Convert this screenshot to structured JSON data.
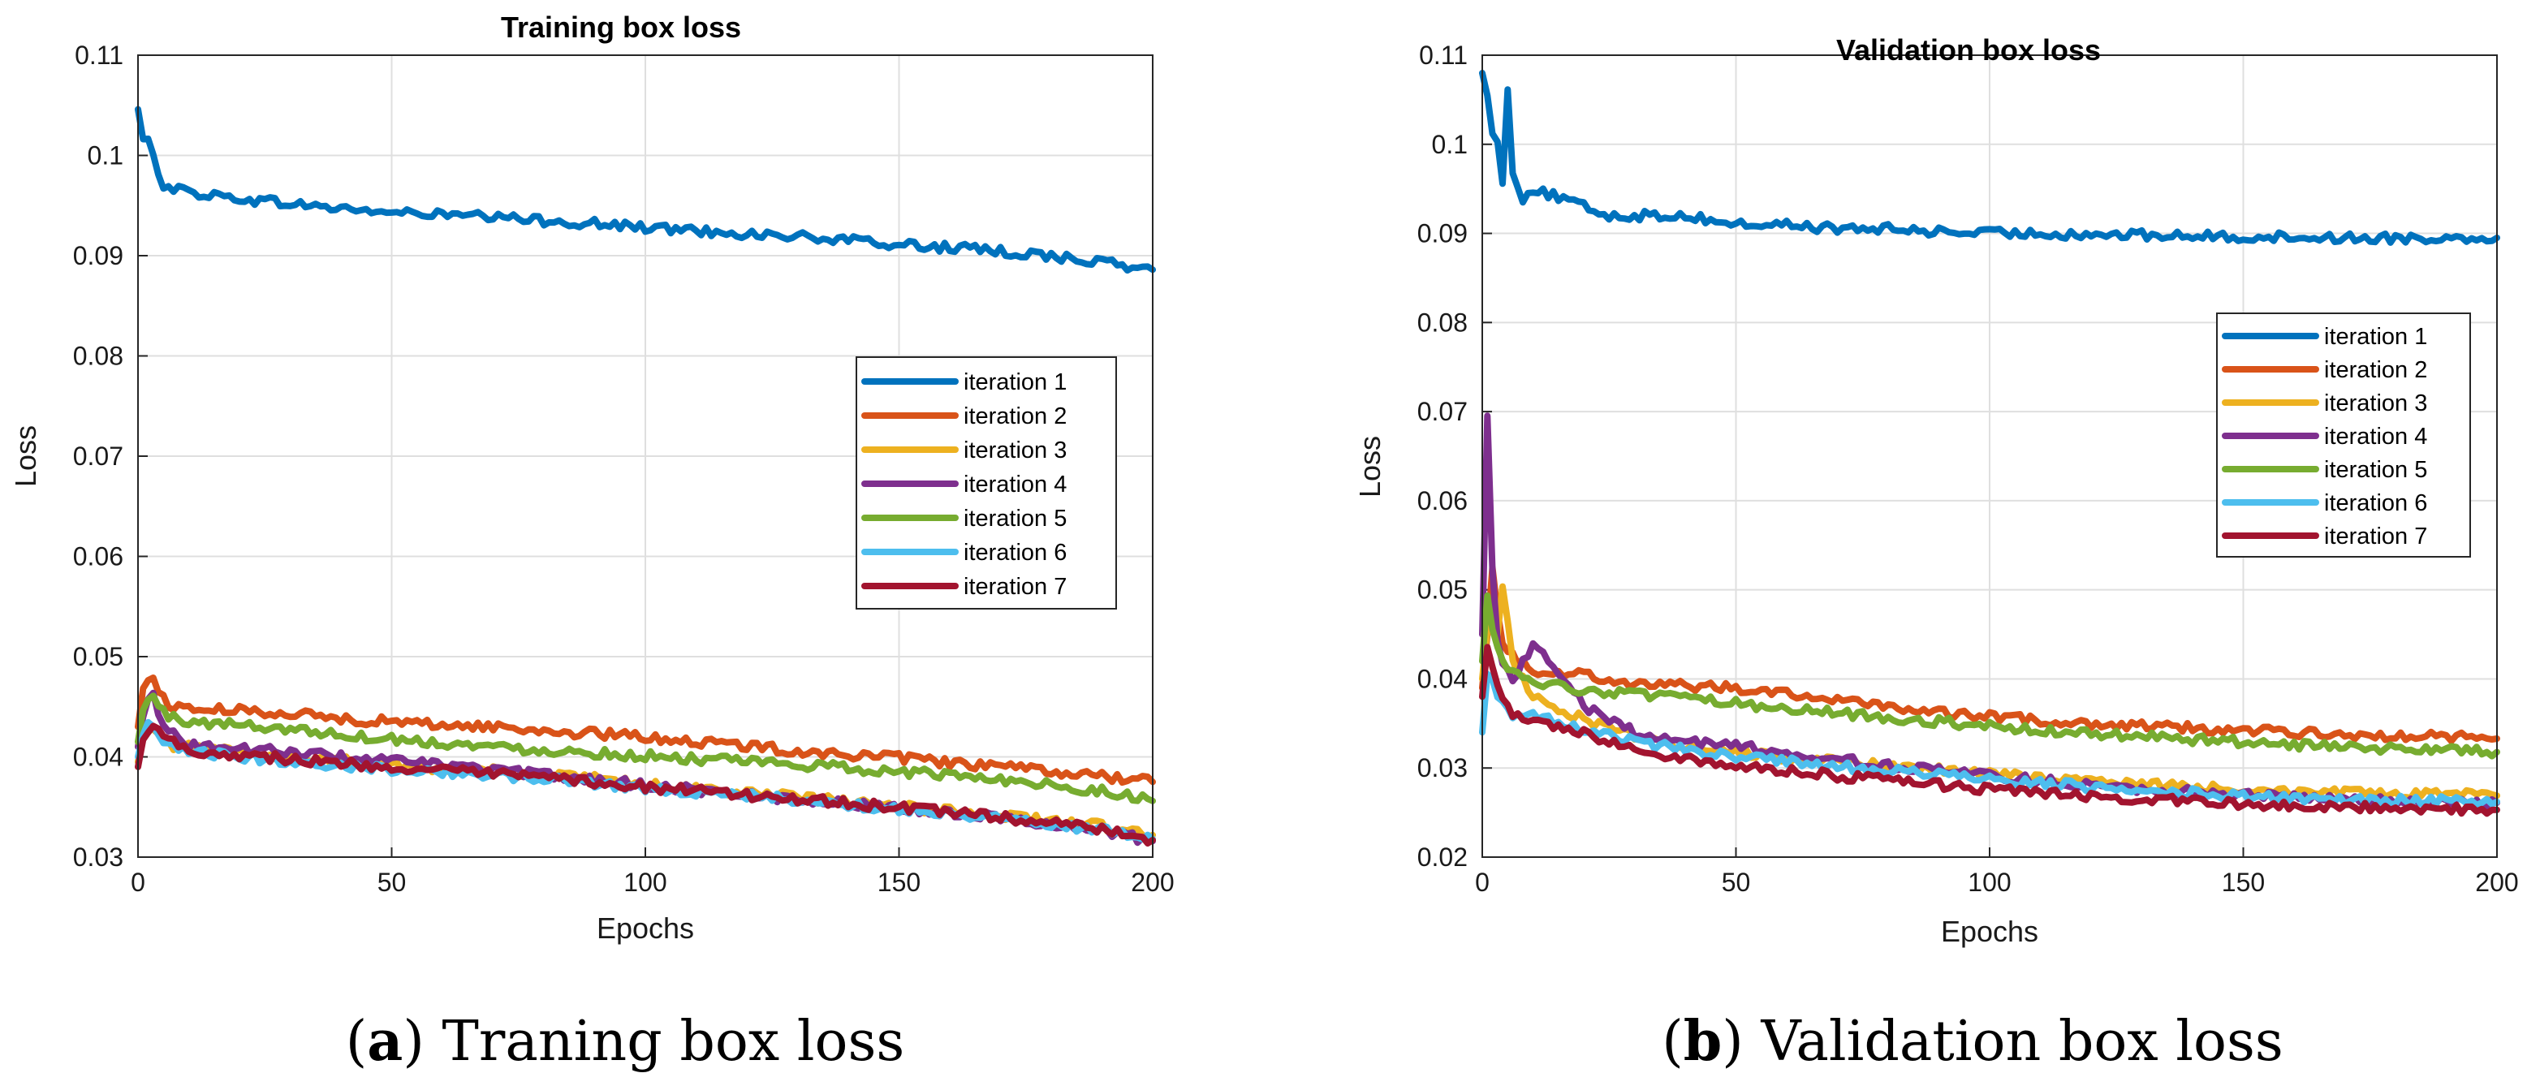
{
  "chart_data": [
    {
      "type": "line",
      "title": "Training box loss",
      "xlabel": "Epochs",
      "ylabel": "Loss",
      "xlim": [
        0,
        200
      ],
      "ylim": [
        0.03,
        0.11
      ],
      "xticks": [
        0,
        50,
        100,
        150,
        200
      ],
      "yticks": [
        0.03,
        0.04,
        0.05,
        0.06,
        0.07,
        0.08,
        0.09,
        0.1,
        0.11
      ],
      "grid": true,
      "legend_position": "center-right",
      "caption_letter": "a",
      "caption_text": "Traning box loss",
      "series": [
        {
          "name": "iteration 1",
          "color": "#0072BD",
          "x": [
            0,
            1,
            2,
            3,
            4,
            5,
            8,
            12,
            20,
            30,
            40,
            50,
            60,
            70,
            80,
            90,
            100,
            110,
            120,
            130,
            140,
            150,
            160,
            170,
            180,
            190,
            200
          ],
          "y": [
            0.1046,
            0.1015,
            0.1012,
            0.1005,
            0.0985,
            0.097,
            0.0966,
            0.0962,
            0.0957,
            0.0952,
            0.0947,
            0.0943,
            0.0941,
            0.0938,
            0.0935,
            0.0932,
            0.0928,
            0.0925,
            0.0922,
            0.0919,
            0.0915,
            0.0911,
            0.0908,
            0.0904,
            0.09,
            0.0893,
            0.0886
          ]
        },
        {
          "name": "iteration 2",
          "color": "#D95319",
          "x": [
            0,
            1,
            2,
            3,
            4,
            6,
            10,
            20,
            30,
            40,
            50,
            60,
            70,
            80,
            90,
            100,
            110,
            120,
            130,
            140,
            150,
            160,
            170,
            180,
            190,
            200
          ],
          "y": [
            0.043,
            0.0467,
            0.0478,
            0.048,
            0.0465,
            0.0452,
            0.0448,
            0.0446,
            0.0444,
            0.0438,
            0.0435,
            0.0432,
            0.043,
            0.0426,
            0.0423,
            0.042,
            0.0415,
            0.0411,
            0.0406,
            0.0402,
            0.0399,
            0.0394,
            0.039,
            0.0385,
            0.0381,
            0.0375
          ]
        },
        {
          "name": "iteration 3",
          "color": "#EDB120",
          "x": [
            0,
            1,
            2,
            3,
            4,
            6,
            10,
            20,
            30,
            40,
            50,
            60,
            70,
            80,
            90,
            100,
            110,
            120,
            130,
            140,
            150,
            160,
            170,
            180,
            190,
            200
          ],
          "y": [
            0.0395,
            0.0418,
            0.043,
            0.0425,
            0.042,
            0.0412,
            0.041,
            0.0405,
            0.0398,
            0.0396,
            0.0392,
            0.0389,
            0.0386,
            0.0382,
            0.0378,
            0.0372,
            0.0368,
            0.0364,
            0.036,
            0.0355,
            0.035,
            0.0346,
            0.0342,
            0.0336,
            0.0331,
            0.0322
          ]
        },
        {
          "name": "iteration 4",
          "color": "#7E2F8E",
          "x": [
            0,
            1,
            2,
            3,
            4,
            6,
            10,
            20,
            30,
            40,
            50,
            60,
            70,
            80,
            90,
            100,
            110,
            120,
            130,
            140,
            150,
            160,
            170,
            180,
            190,
            200
          ],
          "y": [
            0.041,
            0.0438,
            0.0462,
            0.0468,
            0.0445,
            0.0425,
            0.0412,
            0.0408,
            0.0405,
            0.04,
            0.0396,
            0.0392,
            0.0387,
            0.0382,
            0.0377,
            0.0372,
            0.0367,
            0.0362,
            0.0358,
            0.0353,
            0.0349,
            0.0344,
            0.034,
            0.0333,
            0.0326,
            0.0316
          ]
        },
        {
          "name": "iteration 5",
          "color": "#77AC30",
          "x": [
            0,
            1,
            2,
            3,
            4,
            6,
            10,
            20,
            30,
            40,
            50,
            60,
            70,
            80,
            90,
            100,
            110,
            120,
            130,
            140,
            150,
            160,
            170,
            180,
            190,
            200
          ],
          "y": [
            0.0415,
            0.0445,
            0.0458,
            0.0462,
            0.045,
            0.044,
            0.0435,
            0.0432,
            0.0428,
            0.0422,
            0.0418,
            0.0414,
            0.041,
            0.0407,
            0.0404,
            0.0401,
            0.0398,
            0.0395,
            0.0392,
            0.0389,
            0.0385,
            0.0382,
            0.0378,
            0.0372,
            0.0366,
            0.0356
          ]
        },
        {
          "name": "iteration 6",
          "color": "#4DBEEE",
          "x": [
            0,
            1,
            2,
            3,
            4,
            6,
            10,
            20,
            30,
            40,
            50,
            60,
            70,
            80,
            90,
            100,
            110,
            120,
            130,
            140,
            150,
            160,
            170,
            180,
            190,
            200
          ],
          "y": [
            0.04,
            0.042,
            0.0432,
            0.0428,
            0.0418,
            0.041,
            0.0405,
            0.04,
            0.0396,
            0.0391,
            0.0388,
            0.0385,
            0.0382,
            0.0378,
            0.0374,
            0.0369,
            0.0365,
            0.0361,
            0.0357,
            0.0352,
            0.0348,
            0.0344,
            0.0339,
            0.0333,
            0.0327,
            0.0318
          ]
        },
        {
          "name": "iteration 7",
          "color": "#A2142F",
          "x": [
            0,
            1,
            2,
            3,
            4,
            6,
            10,
            20,
            30,
            40,
            50,
            60,
            70,
            80,
            90,
            100,
            110,
            120,
            130,
            140,
            150,
            160,
            170,
            180,
            190,
            200
          ],
          "y": [
            0.039,
            0.0415,
            0.0428,
            0.0435,
            0.043,
            0.0418,
            0.0406,
            0.0402,
            0.0398,
            0.0393,
            0.039,
            0.0386,
            0.0383,
            0.0379,
            0.0375,
            0.037,
            0.0366,
            0.0362,
            0.0358,
            0.0354,
            0.0349,
            0.0345,
            0.034,
            0.0334,
            0.0327,
            0.0317
          ]
        }
      ]
    },
    {
      "type": "line",
      "title": "Validation box loss",
      "xlabel": "Epochs",
      "ylabel": "Loss",
      "xlim": [
        0,
        200
      ],
      "ylim": [
        0.02,
        0.11
      ],
      "xticks": [
        0,
        50,
        100,
        150,
        200
      ],
      "yticks": [
        0.02,
        0.03,
        0.04,
        0.05,
        0.06,
        0.07,
        0.08,
        0.09,
        0.1,
        0.11
      ],
      "grid": true,
      "legend_position": "center-right",
      "caption_letter": "b",
      "caption_text": "Validation box loss",
      "series": [
        {
          "name": "iteration 1",
          "color": "#0072BD",
          "x": [
            0,
            1,
            2,
            3,
            4,
            5,
            6,
            8,
            10,
            15,
            20,
            25,
            30,
            40,
            50,
            60,
            70,
            80,
            90,
            100,
            110,
            120,
            130,
            140,
            150,
            160,
            170,
            180,
            190,
            200
          ],
          "y": [
            0.108,
            0.106,
            0.101,
            0.1,
            0.096,
            0.106,
            0.097,
            0.094,
            0.095,
            0.094,
            0.093,
            0.092,
            0.092,
            0.092,
            0.091,
            0.091,
            0.0905,
            0.0905,
            0.0902,
            0.09,
            0.09,
            0.0899,
            0.0898,
            0.0897,
            0.0896,
            0.0896,
            0.0895,
            0.0895,
            0.0895,
            0.0895
          ]
        },
        {
          "name": "iteration 2",
          "color": "#D95319",
          "x": [
            0,
            1,
            2,
            3,
            4,
            6,
            10,
            20,
            30,
            40,
            50,
            60,
            70,
            80,
            90,
            100,
            110,
            120,
            130,
            140,
            150,
            160,
            170,
            180,
            190,
            200
          ],
          "y": [
            0.039,
            0.0455,
            0.053,
            0.048,
            0.044,
            0.0425,
            0.041,
            0.0405,
            0.0395,
            0.0392,
            0.039,
            0.0385,
            0.0375,
            0.037,
            0.0362,
            0.0358,
            0.0353,
            0.035,
            0.0348,
            0.0345,
            0.0342,
            0.034,
            0.0338,
            0.0336,
            0.0335,
            0.0333
          ]
        },
        {
          "name": "iteration 3",
          "color": "#EDB120",
          "x": [
            0,
            1,
            2,
            3,
            4,
            6,
            10,
            20,
            30,
            40,
            50,
            60,
            70,
            80,
            90,
            100,
            110,
            120,
            130,
            140,
            150,
            160,
            170,
            180,
            190,
            200
          ],
          "y": [
            0.04,
            0.046,
            0.048,
            0.045,
            0.05,
            0.042,
            0.038,
            0.0355,
            0.0335,
            0.0325,
            0.0318,
            0.0312,
            0.0307,
            0.0302,
            0.0298,
            0.0293,
            0.0289,
            0.0285,
            0.0282,
            0.0279,
            0.0276,
            0.0274,
            0.0272,
            0.0271,
            0.027,
            0.0269
          ]
        },
        {
          "name": "iteration 4",
          "color": "#7E2F8E",
          "x": [
            0,
            1,
            2,
            3,
            4,
            6,
            10,
            20,
            30,
            40,
            50,
            60,
            70,
            80,
            90,
            100,
            110,
            120,
            130,
            140,
            150,
            160,
            170,
            180,
            190,
            200
          ],
          "y": [
            0.045,
            0.07,
            0.052,
            0.044,
            0.042,
            0.04,
            0.044,
            0.037,
            0.034,
            0.033,
            0.0325,
            0.0318,
            0.031,
            0.0303,
            0.0297,
            0.0291,
            0.0286,
            0.0281,
            0.0277,
            0.0273,
            0.027,
            0.0267,
            0.0265,
            0.0263,
            0.0262,
            0.0261
          ]
        },
        {
          "name": "iteration 5",
          "color": "#77AC30",
          "x": [
            0,
            1,
            2,
            3,
            4,
            6,
            10,
            20,
            30,
            40,
            50,
            60,
            70,
            80,
            90,
            100,
            110,
            120,
            130,
            140,
            150,
            160,
            170,
            180,
            190,
            200
          ],
          "y": [
            0.042,
            0.0498,
            0.046,
            0.044,
            0.042,
            0.0405,
            0.0395,
            0.0388,
            0.0382,
            0.0378,
            0.0372,
            0.0368,
            0.0362,
            0.0357,
            0.0352,
            0.0347,
            0.0342,
            0.0338,
            0.0335,
            0.0332,
            0.0329,
            0.0326,
            0.0324,
            0.0322,
            0.032,
            0.0318
          ]
        },
        {
          "name": "iteration 6",
          "color": "#4DBEEE",
          "x": [
            0,
            1,
            2,
            3,
            4,
            6,
            10,
            20,
            30,
            40,
            50,
            60,
            70,
            80,
            90,
            100,
            110,
            120,
            130,
            140,
            150,
            160,
            170,
            180,
            190,
            200
          ],
          "y": [
            0.034,
            0.041,
            0.04,
            0.038,
            0.037,
            0.0355,
            0.036,
            0.0345,
            0.033,
            0.032,
            0.0313,
            0.0307,
            0.0302,
            0.0297,
            0.0292,
            0.0287,
            0.0283,
            0.0279,
            0.0275,
            0.0272,
            0.0269,
            0.0267,
            0.0265,
            0.0264,
            0.0263,
            0.0262
          ]
        },
        {
          "name": "iteration 7",
          "color": "#A2142F",
          "x": [
            0,
            1,
            2,
            3,
            4,
            6,
            10,
            20,
            30,
            40,
            50,
            60,
            70,
            80,
            90,
            100,
            110,
            120,
            130,
            140,
            150,
            160,
            170,
            180,
            190,
            200
          ],
          "y": [
            0.038,
            0.044,
            0.041,
            0.039,
            0.038,
            0.036,
            0.035,
            0.034,
            0.032,
            0.031,
            0.0303,
            0.0297,
            0.0291,
            0.0286,
            0.0281,
            0.0276,
            0.0272,
            0.0268,
            0.0265,
            0.0262,
            0.026,
            0.0258,
            0.0256,
            0.0255,
            0.0254,
            0.0253
          ]
        }
      ]
    }
  ]
}
